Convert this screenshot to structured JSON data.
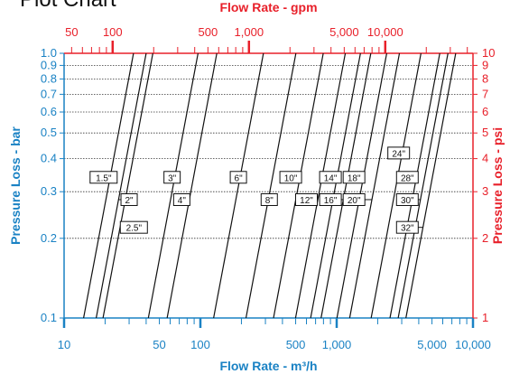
{
  "header": {
    "title": "Plot Chart"
  },
  "colors": {
    "red": "#e8202a",
    "blue": "#1a82c4",
    "curve": "#111111",
    "grid": "#333333"
  },
  "chart_data": {
    "type": "line",
    "scale": "log-log",
    "xlabel": "Flow Rate - m³/h",
    "x2label": "Flow Rate - gpm",
    "ylabel": "Pressure Loss - bar",
    "y2label": "Pressure Loss - psi",
    "xlim": [
      10,
      10000
    ],
    "ylim": [
      0.1,
      1.0
    ],
    "x_ticklabels": [
      {
        "v": 10,
        "t": "10"
      },
      {
        "v": 50,
        "t": "50"
      },
      {
        "v": 100,
        "t": "100"
      },
      {
        "v": 500,
        "t": "500"
      },
      {
        "v": 1000,
        "t": "1,000"
      },
      {
        "v": 5000,
        "t": "5,000"
      },
      {
        "v": 10000,
        "t": "10,000"
      }
    ],
    "x2_ticklabels": [
      {
        "v": 50,
        "t": "50"
      },
      {
        "v": 100,
        "t": "100"
      },
      {
        "v": 500,
        "t": "500"
      },
      {
        "v": 1000,
        "t": "1,000"
      },
      {
        "v": 5000,
        "t": "5,000"
      },
      {
        "v": 10000,
        "t": "10,000"
      }
    ],
    "y_ticklabels": [
      {
        "v": 0.1,
        "t": "0.1"
      },
      {
        "v": 0.2,
        "t": "0.2"
      },
      {
        "v": 0.3,
        "t": "0.3"
      },
      {
        "v": 0.4,
        "t": "0.4"
      },
      {
        "v": 0.5,
        "t": "0.5"
      },
      {
        "v": 0.6,
        "t": "0.6"
      },
      {
        "v": 0.7,
        "t": "0.7"
      },
      {
        "v": 0.8,
        "t": "0.8"
      },
      {
        "v": 0.9,
        "t": "0.9"
      },
      {
        "v": 1.0,
        "t": "1.0"
      }
    ],
    "y2_ticklabels": [
      {
        "v": 1,
        "t": "1"
      },
      {
        "v": 2,
        "t": "2"
      },
      {
        "v": 3,
        "t": "3"
      },
      {
        "v": 4,
        "t": "4"
      },
      {
        "v": 5,
        "t": "5"
      },
      {
        "v": 6,
        "t": "6"
      },
      {
        "v": 7,
        "t": "7"
      },
      {
        "v": 8,
        "t": "8"
      },
      {
        "v": 9,
        "t": "9"
      },
      {
        "v": 10,
        "t": "10"
      }
    ],
    "grid_y": [
      0.2,
      0.3,
      0.4,
      0.5,
      0.6,
      0.7,
      0.8,
      0.9,
      1.0
    ],
    "series": [
      {
        "name": "1.5\"",
        "x": [
          13.9,
          32.3
        ],
        "y": [
          0.1,
          1.0
        ],
        "label_at": {
          "x": 19.5,
          "y": 0.34
        }
      },
      {
        "name": "2\"",
        "x": [
          17.2,
          40
        ],
        "y": [
          0.1,
          1.0
        ],
        "label_at": {
          "x": 30,
          "y": 0.28
        }
      },
      {
        "name": "2.5\"",
        "x": [
          19.3,
          44.8
        ],
        "y": [
          0.1,
          1.0
        ],
        "label_at": {
          "x": 32.5,
          "y": 0.22
        }
      },
      {
        "name": "3\"",
        "x": [
          41.5,
          96.1
        ],
        "y": [
          0.1,
          1.0
        ],
        "label_at": {
          "x": 62,
          "y": 0.34
        }
      },
      {
        "name": "4\"",
        "x": [
          57,
          132
        ],
        "y": [
          0.1,
          1.0
        ],
        "label_at": {
          "x": 73,
          "y": 0.28
        }
      },
      {
        "name": "6\"",
        "x": [
          125,
          290
        ],
        "y": [
          0.1,
          1.0
        ],
        "label_at": {
          "x": 190,
          "y": 0.34
        }
      },
      {
        "name": "8\"",
        "x": [
          216,
          502
        ],
        "y": [
          0.1,
          1.0
        ],
        "label_at": {
          "x": 320,
          "y": 0.28
        }
      },
      {
        "name": "10\"",
        "x": [
          344,
          797
        ],
        "y": [
          0.1,
          1.0
        ],
        "label_at": {
          "x": 460,
          "y": 0.34
        }
      },
      {
        "name": "12\"",
        "x": [
          499,
          1157
        ],
        "y": [
          0.1,
          1.0
        ],
        "label_at": {
          "x": 600,
          "y": 0.28
        }
      },
      {
        "name": "14\"",
        "x": [
          644,
          1494
        ],
        "y": [
          0.1,
          1.0
        ],
        "label_at": {
          "x": 900,
          "y": 0.34
        }
      },
      {
        "name": "16\"",
        "x": [
          768,
          1780
        ],
        "y": [
          0.1,
          1.0
        ],
        "label_at": {
          "x": 900,
          "y": 0.28
        }
      },
      {
        "name": "18\"",
        "x": [
          1004,
          2328
        ],
        "y": [
          0.1,
          1.0
        ],
        "label_at": {
          "x": 1340,
          "y": 0.34
        }
      },
      {
        "name": "20\"",
        "x": [
          1245,
          2887
        ],
        "y": [
          0.1,
          1.0
        ],
        "label_at": {
          "x": 1340,
          "y": 0.28
        }
      },
      {
        "name": "24\"",
        "x": [
          1790,
          4153
        ],
        "y": [
          0.1,
          1.0
        ],
        "label_at": {
          "x": 2850,
          "y": 0.42
        }
      },
      {
        "name": "28\"",
        "x": [
          2460,
          5706
        ],
        "y": [
          0.1,
          1.0
        ],
        "label_at": {
          "x": 3300,
          "y": 0.34
        }
      },
      {
        "name": "30\"",
        "x": [
          2825,
          6553
        ],
        "y": [
          0.1,
          1.0
        ],
        "label_at": {
          "x": 3300,
          "y": 0.28
        }
      },
      {
        "name": "32\"",
        "x": [
          3220,
          7468
        ],
        "y": [
          0.1,
          1.0
        ],
        "label_at": {
          "x": 3300,
          "y": 0.22
        }
      }
    ]
  }
}
